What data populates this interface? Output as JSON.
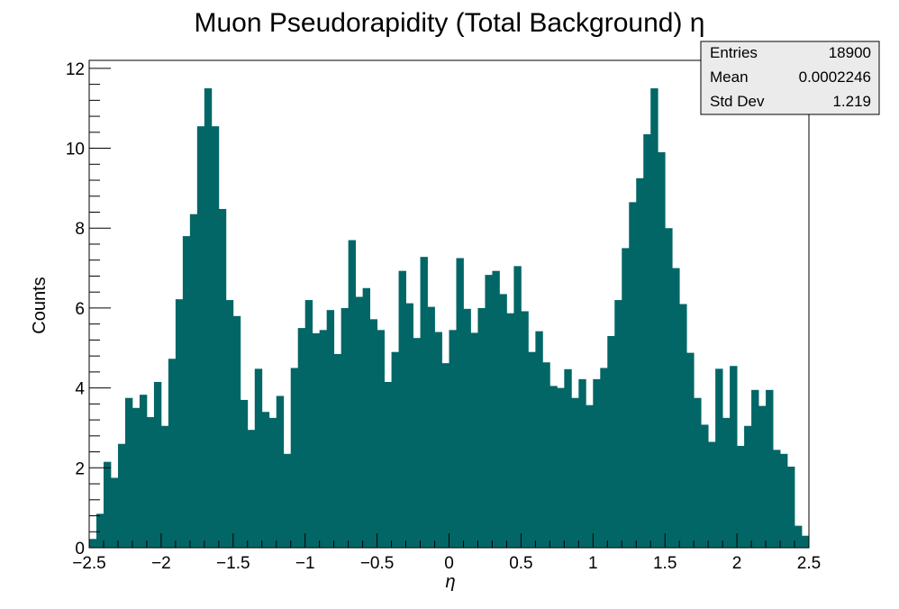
{
  "chart_data": {
    "type": "bar",
    "title": "Muon Pseudorapidity (Total Background) η",
    "xlabel": "η",
    "ylabel": "Counts",
    "xlim": [
      -2.5,
      2.5
    ],
    "ylim": [
      0,
      12.2
    ],
    "bin_width": 0.05,
    "bar_color": "#026666",
    "x_ticks": [
      "−2.5",
      "−2",
      "−1.5",
      "−1",
      "−0.5",
      "0",
      "0.5",
      "1",
      "1.5",
      "2",
      "2.5"
    ],
    "y_ticks": [
      "0",
      "2",
      "4",
      "6",
      "8",
      "10",
      "12"
    ],
    "values": [
      0.22,
      0.85,
      2.15,
      1.75,
      2.6,
      3.75,
      3.5,
      3.83,
      3.27,
      4.15,
      3.05,
      4.73,
      6.22,
      7.8,
      8.35,
      10.55,
      11.5,
      10.55,
      8.48,
      6.2,
      5.8,
      3.7,
      2.95,
      4.48,
      3.4,
      3.25,
      3.8,
      2.35,
      4.5,
      5.5,
      6.2,
      5.37,
      5.45,
      5.95,
      4.85,
      6.0,
      7.7,
      6.28,
      6.5,
      5.72,
      5.45,
      4.15,
      4.9,
      6.93,
      6.12,
      5.25,
      7.28,
      6.03,
      5.4,
      4.62,
      5.45,
      7.25,
      5.98,
      5.38,
      6.0,
      6.83,
      6.93,
      6.35,
      5.87,
      7.05,
      5.92,
      4.9,
      5.42,
      4.64,
      4.05,
      4.0,
      4.47,
      3.75,
      4.22,
      3.57,
      4.22,
      4.5,
      5.3,
      6.2,
      7.5,
      8.65,
      9.25,
      10.35,
      11.5,
      9.9,
      8.0,
      7.0,
      6.1,
      4.88,
      3.75,
      3.08,
      2.65,
      4.48,
      3.25,
      4.55,
      2.55,
      3.05,
      3.95,
      3.55,
      3.95,
      2.45,
      2.35,
      2.03,
      0.55,
      0.3
    ]
  },
  "stats_box": {
    "rows": [
      {
        "label": "Entries",
        "value": "18900"
      },
      {
        "label": "Mean",
        "value": "0.0002246"
      },
      {
        "label": "Std Dev",
        "value": "1.219"
      }
    ]
  }
}
